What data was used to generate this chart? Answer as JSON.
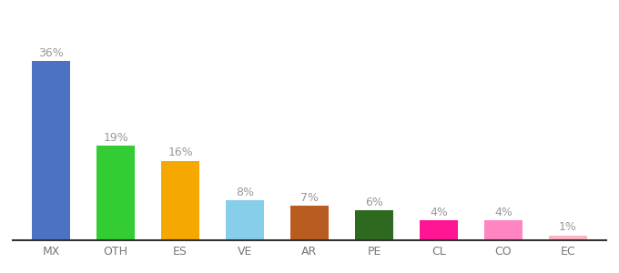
{
  "categories": [
    "MX",
    "OTH",
    "ES",
    "VE",
    "AR",
    "PE",
    "CL",
    "CO",
    "EC"
  ],
  "values": [
    36,
    19,
    16,
    8,
    7,
    6,
    4,
    4,
    1
  ],
  "bar_colors": [
    "#4c72c4",
    "#33cc33",
    "#f5a800",
    "#87ceeb",
    "#b85c20",
    "#2d6a1f",
    "#ff1493",
    "#ff85c2",
    "#ffb3c1"
  ],
  "background_color": "#ffffff",
  "label_fontsize": 9,
  "tick_fontsize": 9,
  "bar_width": 0.6
}
